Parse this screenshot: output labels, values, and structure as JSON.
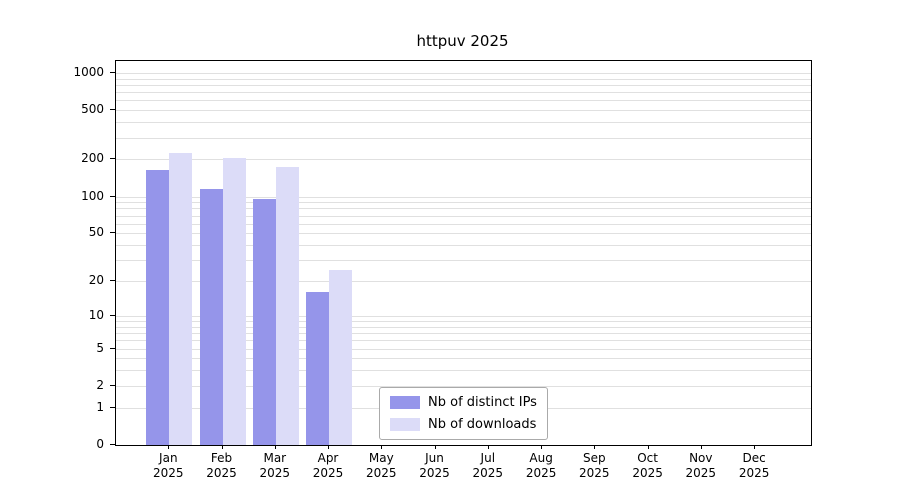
{
  "chart_data": {
    "type": "bar",
    "title": "httpuv 2025",
    "categories": [
      "Jan",
      "Feb",
      "Mar",
      "Apr",
      "May",
      "Jun",
      "Jul",
      "Aug",
      "Sep",
      "Oct",
      "Nov",
      "Dec"
    ],
    "year_label": "2025",
    "series": [
      {
        "name": "Nb of distinct IPs",
        "color": "#9595ea",
        "values": [
          165,
          115,
          95,
          16,
          0,
          0,
          0,
          0,
          0,
          0,
          0,
          0
        ]
      },
      {
        "name": "Nb of downloads",
        "color": "#dcdcf8",
        "values": [
          225,
          205,
          175,
          25,
          0,
          0,
          0,
          0,
          0,
          0,
          0,
          0
        ]
      }
    ],
    "y_ticks": [
      0,
      1,
      2,
      5,
      10,
      20,
      50,
      100,
      200,
      500,
      1000
    ],
    "y_scale": "log1p",
    "ylim": [
      0,
      1250
    ],
    "grid": "minor-log-horizontal",
    "legend_position": "bottom-center",
    "colors": {
      "grid": "#e0e0e0",
      "axis": "#000000",
      "background": "#ffffff"
    }
  }
}
